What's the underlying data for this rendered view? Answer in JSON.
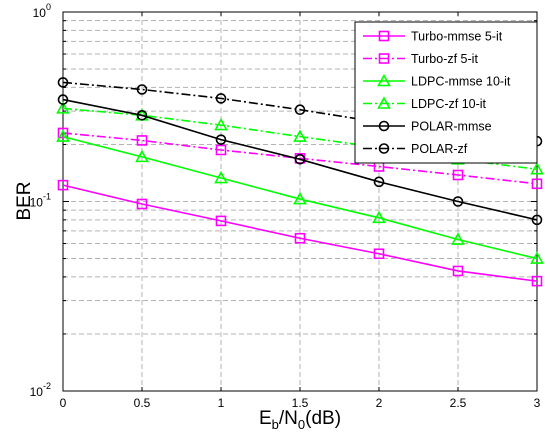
{
  "chart_data": {
    "type": "line",
    "xlabel_main": "E",
    "xlabel_sub1": "b",
    "xlabel_mid": "/N",
    "xlabel_sub2": "0",
    "xlabel_end": "(dB)",
    "ylabel": "BER",
    "x": [
      0,
      0.5,
      1,
      1.5,
      2,
      2.5,
      3
    ],
    "x_tick_labels": [
      "0",
      "0.5",
      "1",
      "1.5",
      "2",
      "2.5",
      "3"
    ],
    "xlim": [
      0,
      3
    ],
    "ylim": [
      0.01,
      1
    ],
    "yscale": "log",
    "y_tick_labels": [
      {
        "base": "10",
        "exp": "0",
        "value": 1
      },
      {
        "base": "10",
        "exp": "-1",
        "value": 0.1
      },
      {
        "base": "10",
        "exp": "-2",
        "value": 0.01
      }
    ],
    "grid": true,
    "legend_position": "top-right",
    "series": [
      {
        "name": "Turbo-mmse 5-it",
        "color": "#ff00ff",
        "dash": "solid",
        "marker": "square",
        "values": [
          0.122,
          0.097,
          0.079,
          0.064,
          0.053,
          0.043,
          0.038
        ]
      },
      {
        "name": "Turbo-zf 5-it",
        "color": "#ff00ff",
        "dash": "dashdot",
        "marker": "square",
        "values": [
          0.23,
          0.21,
          0.187,
          0.169,
          0.153,
          0.138,
          0.124
        ]
      },
      {
        "name": "LDPC-mmse 10-it",
        "color": "#00ff00",
        "dash": "solid",
        "marker": "triangle",
        "values": [
          0.22,
          0.172,
          0.133,
          0.103,
          0.082,
          0.063,
          0.05
        ]
      },
      {
        "name": "LDPC-zf 10-it",
        "color": "#00ff00",
        "dash": "dashdot",
        "marker": "triangle",
        "values": [
          0.31,
          0.285,
          0.253,
          0.22,
          0.193,
          0.167,
          0.148
        ]
      },
      {
        "name": "POLAR-mmse",
        "color": "#000000",
        "dash": "solid",
        "marker": "circle",
        "values": [
          0.345,
          0.285,
          0.212,
          0.167,
          0.127,
          0.1,
          0.08
        ]
      },
      {
        "name": "POLAR-zf",
        "color": "#000000",
        "dash": "dashdot",
        "marker": "circle",
        "values": [
          0.425,
          0.39,
          0.35,
          0.305,
          0.262,
          0.235,
          0.208
        ]
      }
    ]
  }
}
